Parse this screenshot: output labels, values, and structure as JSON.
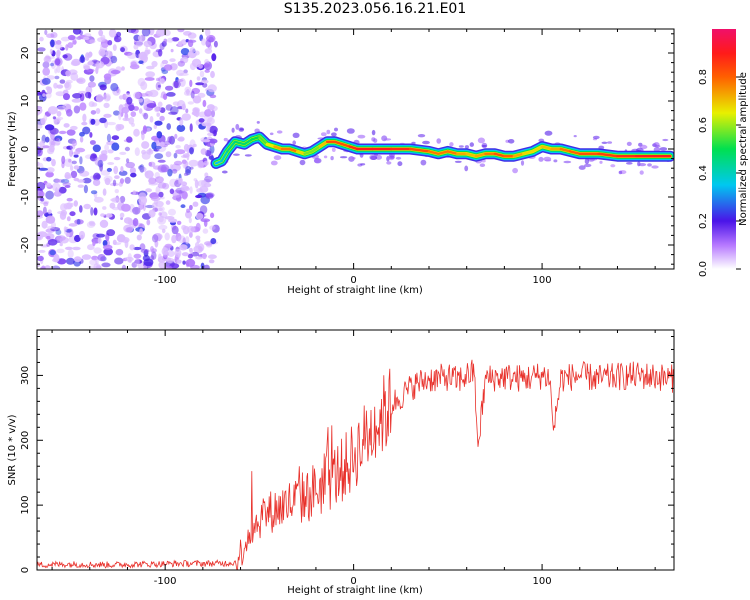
{
  "page": {
    "title": "S135.2023.056.16.21.E01"
  },
  "chart_data": [
    {
      "type": "heatmap",
      "xlabel": "Height of straight line (km)",
      "ylabel": "Frequency (Hz)",
      "xlim": [
        -168,
        170
      ],
      "ylim": [
        -25,
        25
      ],
      "xticks": [
        -100,
        0,
        100
      ],
      "yticks": [
        -20,
        -10,
        0,
        10,
        20
      ],
      "grid": false,
      "colorbar": {
        "label": "Normalized spectral amplitude",
        "range": [
          0.0,
          1.0
        ],
        "ticks": [
          "0.0",
          "0.2",
          "0.4",
          "0.6",
          "0.8"
        ]
      },
      "noise_region": {
        "x_range": [
          -168,
          -73
        ],
        "y_range": [
          -25,
          25
        ],
        "amplitude": [
          0.0,
          0.25
        ]
      },
      "ridge": {
        "x": [
          -73,
          -70,
          -67,
          -63,
          -58,
          -54,
          -50,
          -46,
          -42,
          -38,
          -34,
          -30,
          -26,
          -22,
          -18,
          -14,
          -10,
          -6,
          -2,
          2,
          10,
          20,
          30,
          40,
          45,
          50,
          55,
          60,
          65,
          70,
          75,
          80,
          85,
          90,
          95,
          100,
          105,
          110,
          115,
          120,
          130,
          140,
          150,
          160,
          168
        ],
        "y": [
          -3,
          -2.5,
          -0.5,
          1.5,
          1.0,
          2.0,
          2.5,
          1.0,
          0.5,
          0.0,
          0.0,
          -0.5,
          -1.0,
          -0.5,
          0.5,
          1.5,
          1.5,
          1.0,
          0.5,
          0.0,
          0.0,
          0.0,
          0.0,
          -0.5,
          -1.0,
          -0.5,
          -1.0,
          -1.0,
          -1.5,
          -1.0,
          -1.0,
          -1.5,
          -1.5,
          -1.0,
          -0.5,
          0.5,
          0.0,
          0.0,
          -0.5,
          -1.0,
          -1.0,
          -1.5,
          -1.5,
          -1.5,
          -1.5
        ],
        "amplitude": [
          0.3,
          0.4,
          0.4,
          0.5,
          0.45,
          0.5,
          0.5,
          0.6,
          0.7,
          0.75,
          0.8,
          0.75,
          0.6,
          0.55,
          0.6,
          0.8,
          0.85,
          0.8,
          0.85,
          0.9,
          0.9,
          0.9,
          0.85,
          0.8,
          0.75,
          0.8,
          0.75,
          0.7,
          0.7,
          0.75,
          0.8,
          0.85,
          0.75,
          0.7,
          0.65,
          0.7,
          0.7,
          0.75,
          0.8,
          0.8,
          0.85,
          0.85,
          0.9,
          0.9,
          0.9
        ]
      }
    },
    {
      "type": "line",
      "xlabel": "Height of straight line (km)",
      "ylabel": "SNR (10 * v/v)",
      "xlim": [
        -168,
        170
      ],
      "ylim": [
        0,
        370
      ],
      "xticks": [
        -100,
        0,
        100
      ],
      "yticks": [
        0,
        100,
        200,
        300
      ],
      "grid": false,
      "line_color": "#e8302a",
      "series": [
        {
          "x": [
            -168,
            -150,
            -130,
            -110,
            -90,
            -70,
            -62,
            -58,
            -55,
            -52,
            -48,
            -44,
            -40,
            -36,
            -32,
            -28,
            -24,
            -20,
            -16,
            -12,
            -8,
            -4,
            0,
            4,
            8,
            12,
            16,
            20,
            24,
            28,
            32,
            36,
            40,
            45,
            50,
            55,
            60,
            64,
            66,
            70,
            80,
            90,
            100,
            104,
            106,
            110,
            120,
            130,
            140,
            150,
            160,
            170
          ],
          "y": [
            8,
            9,
            8,
            9,
            10,
            10,
            12,
            40,
            60,
            70,
            85,
            90,
            95,
            100,
            105,
            110,
            115,
            125,
            130,
            140,
            150,
            160,
            175,
            195,
            210,
            225,
            240,
            255,
            265,
            275,
            285,
            290,
            295,
            295,
            298,
            292,
            300,
            305,
            190,
            295,
            298,
            295,
            300,
            298,
            215,
            295,
            300,
            295,
            298,
            300,
            298,
            295
          ]
        }
      ]
    }
  ],
  "colors": {
    "signal": "#e8302a",
    "noise": "#7a2bf0",
    "ridge_peak": "#e8302a"
  }
}
